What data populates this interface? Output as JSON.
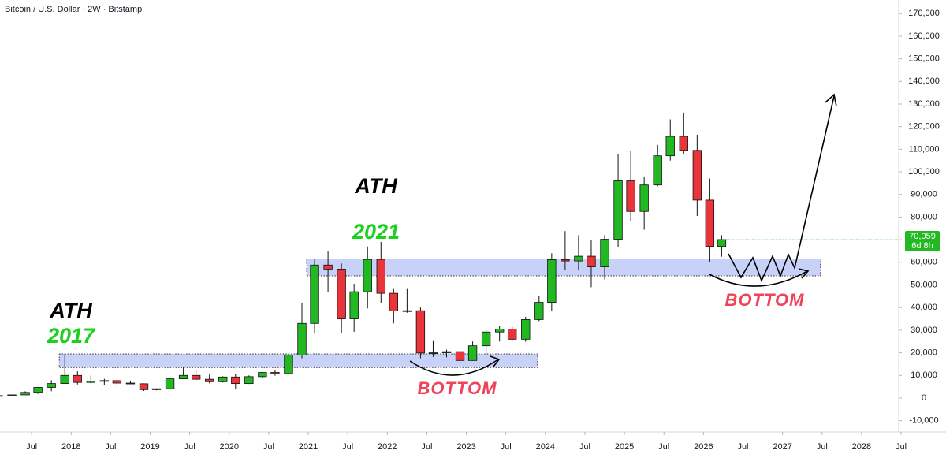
{
  "chart_data": {
    "type": "candlestick",
    "title": "Bitcoin / U.S. Dollar · 2W · Bitstamp",
    "x": [
      2017.08,
      2017.25,
      2017.42,
      2017.58,
      2017.75,
      2017.92,
      2018.08,
      2018.25,
      2018.42,
      2018.58,
      2018.75,
      2018.92,
      2019.08,
      2019.25,
      2019.42,
      2019.58,
      2019.75,
      2019.92,
      2020.08,
      2020.25,
      2020.42,
      2020.58,
      2020.75,
      2020.92,
      2021.08,
      2021.25,
      2021.42,
      2021.58,
      2021.75,
      2021.92,
      2022.08,
      2022.25,
      2022.42,
      2022.58,
      2022.75,
      2022.92,
      2023.08,
      2023.25,
      2023.42,
      2023.58,
      2023.75,
      2023.92,
      2024.08,
      2024.25,
      2024.42,
      2024.58,
      2024.75,
      2024.92,
      2025.08,
      2025.25,
      2025.42,
      2025.58,
      2025.75,
      2025.92,
      2026.08,
      2026.23
    ],
    "open": [
      970,
      1080,
      1400,
      2500,
      4700,
      6400,
      10000,
      6900,
      7500,
      7700,
      6600,
      6300,
      3700,
      4100,
      8500,
      10000,
      8300,
      7200,
      9300,
      6400,
      9450,
      11300,
      10800,
      19000,
      33000,
      58800,
      57000,
      35000,
      47000,
      61300,
      46300,
      38500,
      38600,
      19900,
      20000,
      20500,
      16600,
      23100,
      29200,
      30500,
      26000,
      34700,
      42300,
      61200,
      60600,
      62700,
      58000,
      70200,
      96000,
      82500,
      94200,
      107100,
      115700,
      109500,
      87500,
      67000
    ],
    "high": [
      1250,
      1450,
      3000,
      4900,
      7900,
      19700,
      11800,
      10000,
      8500,
      8400,
      7400,
      6500,
      4200,
      8900,
      13800,
      12300,
      10400,
      9600,
      10500,
      10000,
      11400,
      12500,
      19500,
      41900,
      61700,
      64800,
      59500,
      50500,
      67000,
      69000,
      48200,
      48200,
      40000,
      25200,
      21400,
      21400,
      25000,
      30000,
      31800,
      31500,
      35900,
      45000,
      64000,
      73800,
      72000,
      70000,
      72000,
      108000,
      109300,
      97900,
      111900,
      123200,
      126200,
      116400,
      97000,
      72000
    ],
    "low": [
      900,
      900,
      1400,
      1800,
      3000,
      6400,
      6000,
      6400,
      5800,
      5900,
      6100,
      3150,
      3400,
      4000,
      8500,
      7700,
      6500,
      6850,
      3850,
      6200,
      8900,
      9900,
      10400,
      17600,
      28800,
      47000,
      28800,
      29300,
      39600,
      42000,
      33000,
      37700,
      17600,
      18200,
      18000,
      15500,
      16500,
      19600,
      25000,
      25200,
      24900,
      34000,
      38500,
      56500,
      56500,
      49000,
      52500,
      66800,
      78200,
      74400,
      93600,
      105000,
      107800,
      80500,
      60100,
      62500
    ],
    "close": [
      1080,
      1400,
      2500,
      4700,
      6400,
      10000,
      6900,
      7500,
      7700,
      6600,
      6300,
      3700,
      4100,
      8500,
      10000,
      8300,
      7200,
      9300,
      6400,
      9450,
      11300,
      10800,
      19000,
      33000,
      58800,
      57000,
      35000,
      47000,
      61300,
      46300,
      38500,
      38600,
      19900,
      20000,
      20500,
      16600,
      23100,
      29200,
      30500,
      26000,
      34700,
      42300,
      61200,
      60600,
      62700,
      58000,
      70200,
      96000,
      82500,
      94200,
      107100,
      115700,
      109500,
      87500,
      67000,
      70059
    ],
    "up_color": "#22b822",
    "down_color": "#e8343a",
    "xlim": [
      2017.1,
      2028.47
    ],
    "xticks": [
      {
        "value": 2017.5,
        "label": "Jul"
      },
      2018,
      {
        "value": 2018.5,
        "label": "Jul"
      },
      2019,
      {
        "value": 2019.5,
        "label": "Jul"
      },
      2020,
      {
        "value": 2020.5,
        "label": "Jul"
      },
      2021,
      {
        "value": 2021.5,
        "label": "Jul"
      },
      2022,
      {
        "value": 2022.5,
        "label": "Jul"
      },
      2023,
      {
        "value": 2023.5,
        "label": "Jul"
      },
      2024,
      {
        "value": 2024.5,
        "label": "Jul"
      },
      2025,
      {
        "value": 2025.5,
        "label": "Jul"
      },
      2026,
      {
        "value": 2026.5,
        "label": "Jul"
      },
      2027,
      {
        "value": 2027.5,
        "label": "Jul"
      },
      2028,
      {
        "value": 2028.5,
        "label": "Jul"
      }
    ],
    "ylim": [
      -15000,
      176000
    ],
    "yticks": [
      {
        "value": -10000,
        "label": "-10,000"
      },
      0,
      {
        "value": 10000,
        "label": "10,000"
      },
      {
        "value": 20000,
        "label": "20,000"
      },
      {
        "value": 30000,
        "label": "30,000"
      },
      {
        "value": 40000,
        "label": "40,000"
      },
      {
        "value": 50000,
        "label": "50,000"
      },
      {
        "value": 60000,
        "label": "60,000"
      },
      {
        "value": 70000,
        "label": "70,000"
      },
      {
        "value": 80000,
        "label": "80,000"
      },
      {
        "value": 90000,
        "label": "90,000"
      },
      {
        "value": 100000,
        "label": "100,000"
      },
      {
        "value": 110000,
        "label": "110,000"
      },
      {
        "value": 120000,
        "label": "120,000"
      },
      {
        "value": 130000,
        "label": "130,000"
      },
      {
        "value": 140000,
        "label": "140,000"
      },
      {
        "value": 150000,
        "label": "150,000"
      },
      {
        "value": 160000,
        "label": "160,000"
      },
      {
        "value": 170000,
        "label": "170,000"
      }
    ],
    "grid": false,
    "last_price": {
      "value": 70059,
      "label": "70,059"
    },
    "countdown": "6d 8h",
    "zones": [
      {
        "x": [
          2017.85,
          2023.9
        ],
        "y": [
          13500,
          19500
        ],
        "color": "#c8d2f8"
      },
      {
        "x": [
          2020.98,
          2027.48
        ],
        "y": [
          54000,
          61500
        ],
        "color": "#c8d2f8"
      }
    ],
    "annotations": [
      "ATH",
      "2017",
      "ATH",
      "2021",
      "BOTTOM",
      "BOTTOM"
    ]
  }
}
